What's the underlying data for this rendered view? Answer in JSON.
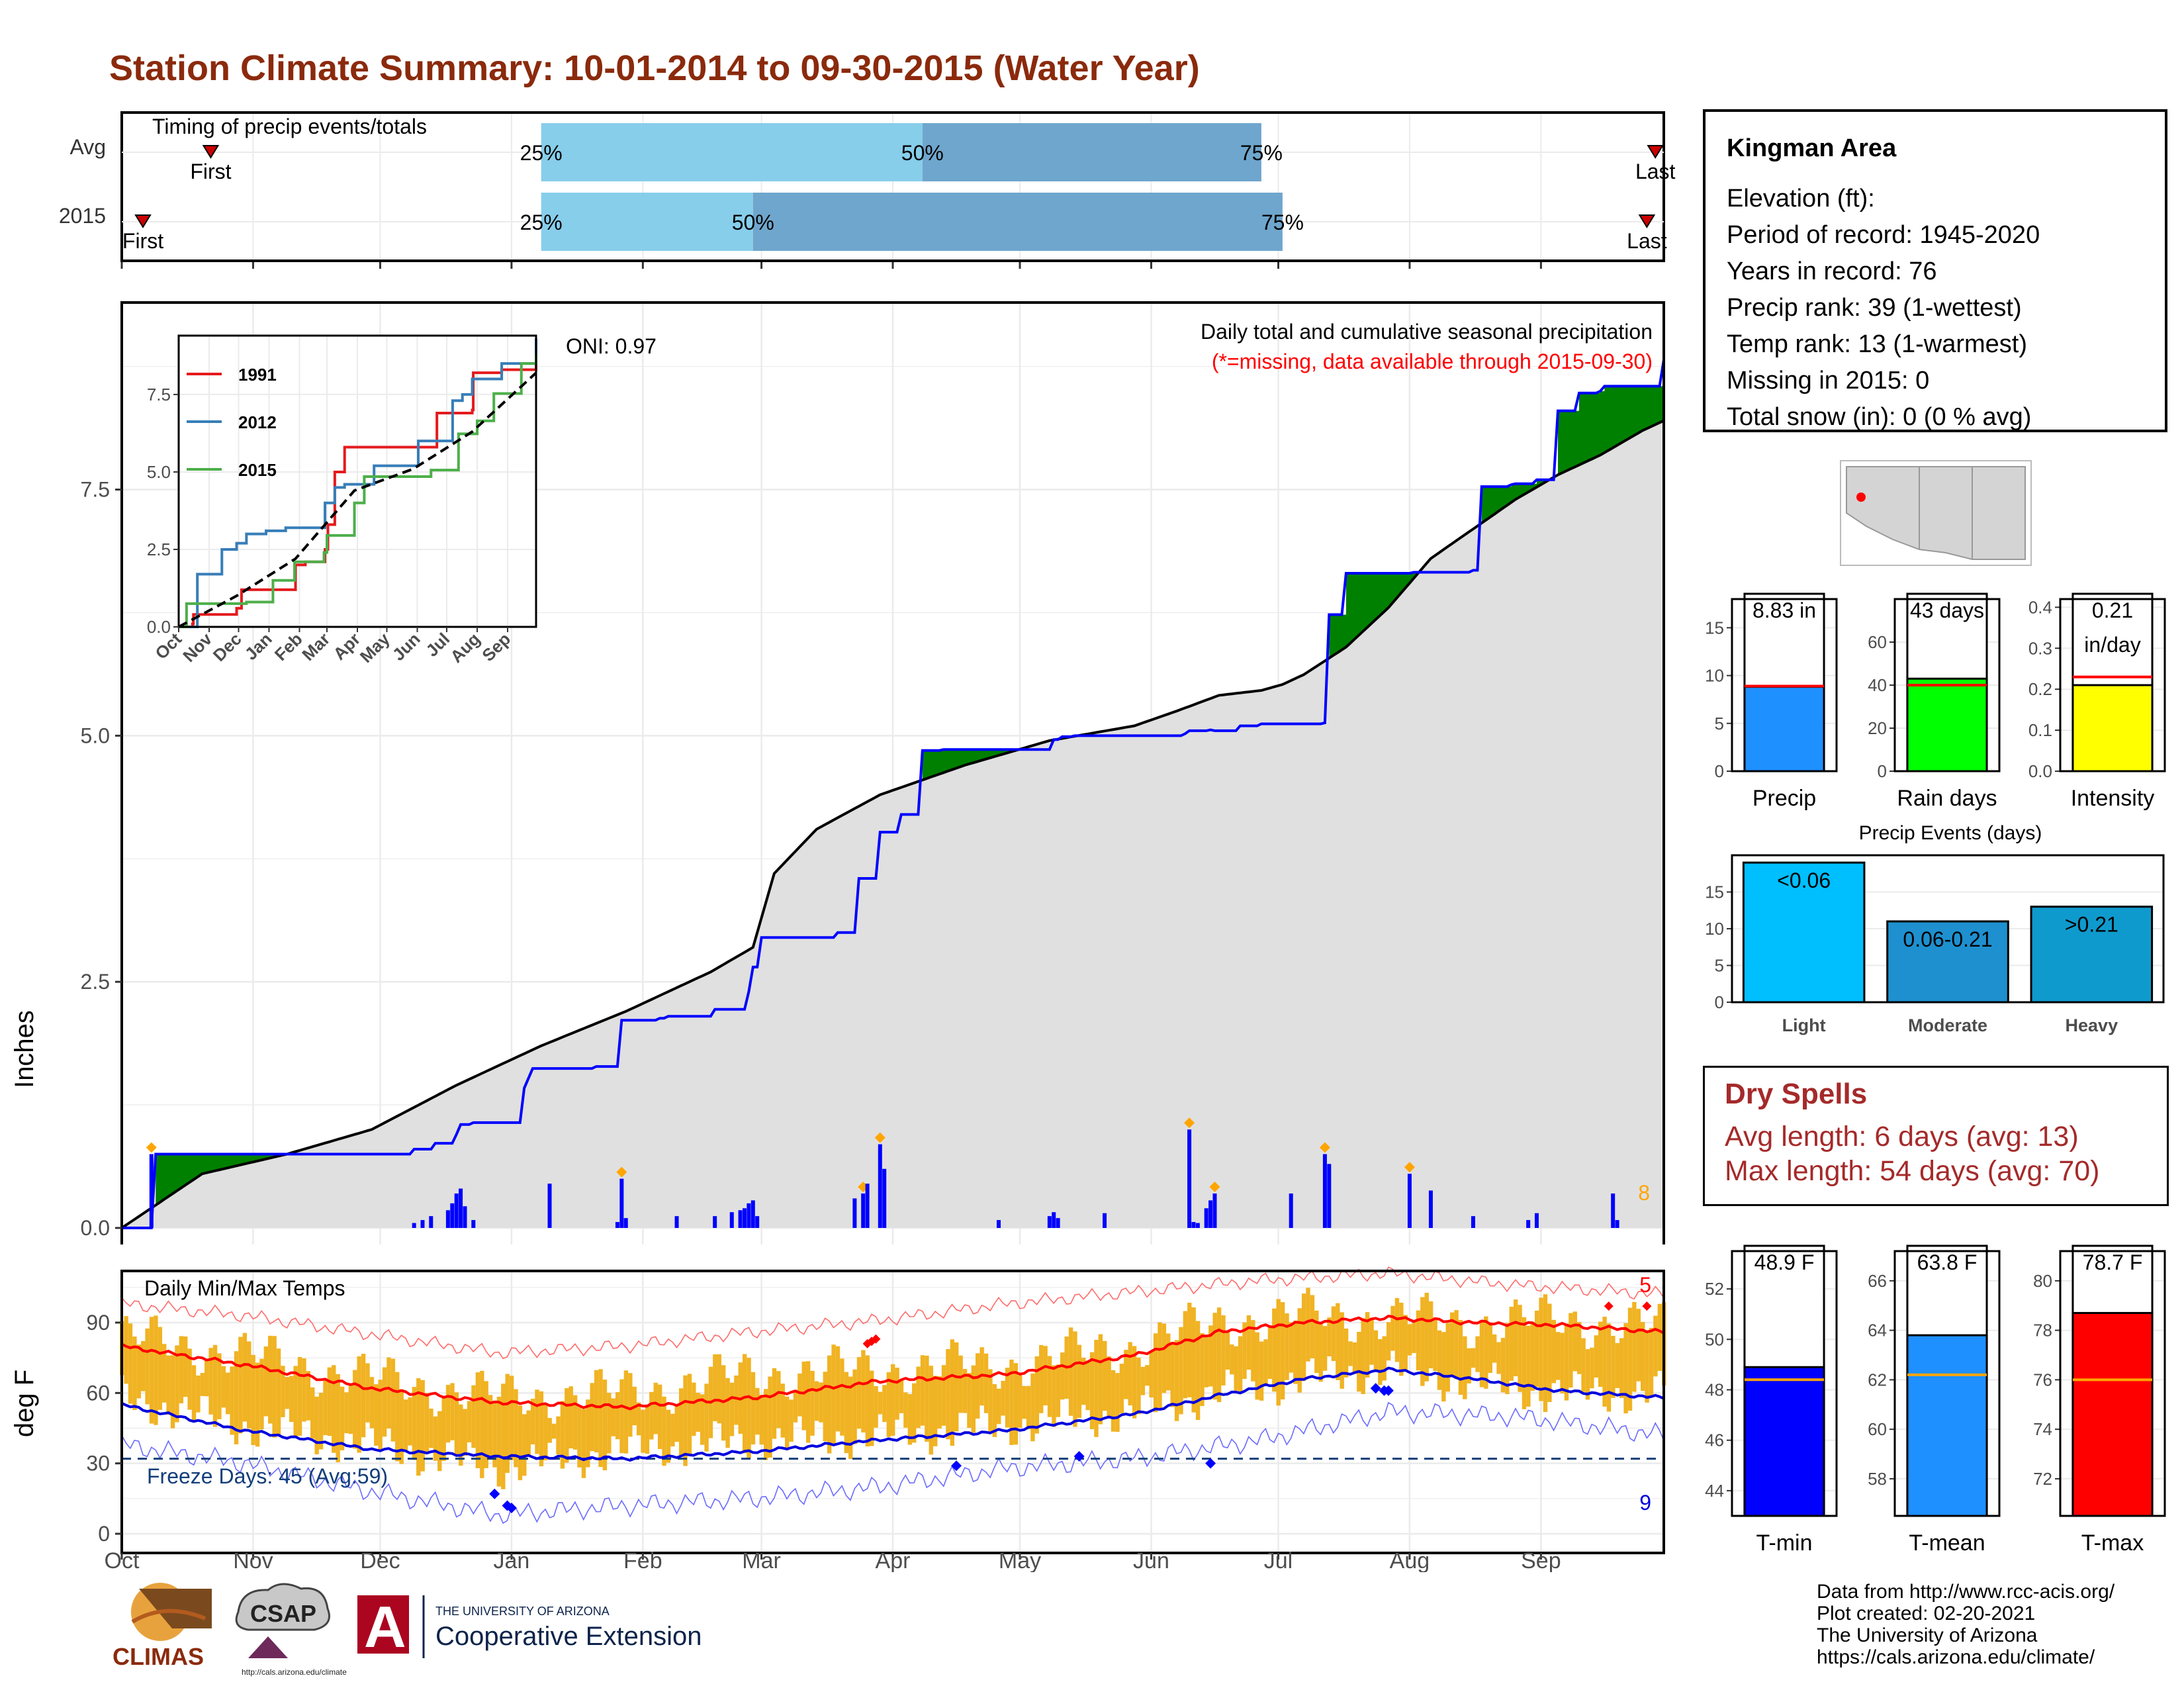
{
  "page": {
    "title": "Station Climate Summary: 10-01-2014 to 09-30-2015 (Water Year)"
  },
  "colors": {
    "title": "#8b2a0c",
    "light_blue": "#87ceeb",
    "mid_blue": "#6fa6cd",
    "above_avg": "#008000",
    "below_avg": "#8b5a00",
    "avg_fill": "#e0e0e0",
    "daily_bars": "#0000ff",
    "temp_bars": "#f0b323",
    "avg_max": "#ff0000",
    "avg_min": "#0000dd",
    "dry_spells": "#a52a2a"
  },
  "timing_panel": {
    "label": "Timing of precip events/totals",
    "rows": [
      {
        "label": "Avg",
        "first_marker": "First",
        "last_marker": "Last",
        "first_day": 22,
        "last_day": 363,
        "p25_label": "25%",
        "p50_label": "50%",
        "p75_label": "75%",
        "p25_day": 100,
        "p50_day": 190,
        "p75_day": 270
      },
      {
        "label": "2015",
        "first_marker": "First",
        "last_marker": "Last",
        "first_day": 6,
        "last_day": 361,
        "p25_label": "25%",
        "p50_label": "50%",
        "p75_label": "75%",
        "p25_day": 100,
        "p50_day": 150,
        "p75_day": 275
      }
    ]
  },
  "precip_panel": {
    "y_axis_label": "Inches",
    "ytick_labels": [
      "0.0",
      "2.5",
      "5.0",
      "7.5"
    ],
    "title": "Daily total and cumulative seasonal precipitation",
    "subtitle": "(*=missing, data available through 2015-09-30)",
    "oni": "ONI: 0.97",
    "corner_count": "8"
  },
  "inset": {
    "ytick_labels": [
      "0.0",
      "2.5",
      "5.0",
      "7.5"
    ],
    "xtick_labels": [
      "Oct",
      "Nov",
      "Dec",
      "Jan",
      "Feb",
      "Mar",
      "Apr",
      "May",
      "Jun",
      "Jul",
      "Aug",
      "Sep"
    ],
    "legend": [
      {
        "label": "1991",
        "color": "#e41a1c"
      },
      {
        "label": "2012",
        "color": "#377eb8"
      },
      {
        "label": "2015",
        "color": "#4daf4a"
      }
    ]
  },
  "temp_panel": {
    "y_axis_label": "deg F",
    "title": "Daily Min/Max Temps",
    "ytick_labels": [
      "0",
      "30",
      "60",
      "90"
    ],
    "freeze_days": "Freeze Days: 45 (Avg:59)",
    "record_high_count": "5",
    "record_low_count": "9"
  },
  "month_labels": [
    "Oct",
    "Nov",
    "Dec",
    "Jan",
    "Feb",
    "Mar",
    "Apr",
    "May",
    "Jun",
    "Jul",
    "Aug",
    "Sep"
  ],
  "info_box": {
    "name": "Kingman Area",
    "lines": [
      "Elevation (ft):",
      "Period of record: 1945-2020",
      "Years in record: 76",
      "Precip rank: 39 (1-wettest)",
      "Temp rank: 13 (1-warmest)",
      "Missing in 2015: 0",
      "Total snow (in): 0 (0 % avg)"
    ]
  },
  "dry_spells": {
    "title": "Dry Spells",
    "avg_length": "Avg length: 6 days (avg: 13)",
    "max_length": "Max length: 54 days (avg: 70)"
  },
  "events_title": "Precip Events (days)",
  "credits": [
    "Data from http://www.rcc-acis.org/",
    "Plot created: 02-20-2021",
    "The University of Arizona",
    "https://cals.arizona.edu/climate/"
  ],
  "logos": {
    "climas": "CLIMAS",
    "csap": "CSAP",
    "csap_url": "http://cals.arizona.edu/climate",
    "ua_letter": "A",
    "ua_small": "THE UNIVERSITY OF ARIZONA",
    "ua_big": "Cooperative Extension"
  },
  "chart_data": [
    {
      "type": "area",
      "title": "Daily total and cumulative seasonal precipitation",
      "ylabel": "Inches",
      "ylim": [
        0,
        9.4
      ],
      "x_unit": "day of water year (1 = Oct 1)",
      "grid": true,
      "series": [
        {
          "name": "cumulative_2015",
          "x": [
            1,
            8,
            9,
            45,
            70,
            75,
            80,
            81,
            84,
            93,
            96,
            97,
            98,
            113,
            119,
            128,
            130,
            132,
            135,
            141,
            149,
            150,
            152,
            153,
            156,
            166,
            170,
            175,
            180,
            185,
            190,
            195,
            196,
            210,
            220,
            221,
            223,
            226,
            252,
            253,
            258,
            259,
            265,
            270,
            285,
            286,
            290,
            305,
            306,
            320,
            322,
            329,
            330,
            335,
            340,
            345,
            350,
            351,
            365
          ],
          "y": [
            0.0,
            0.0,
            0.75,
            0.75,
            0.8,
            0.86,
            0.95,
            1.05,
            1.07,
            1.07,
            1.42,
            1.52,
            1.62,
            1.64,
            2.11,
            2.13,
            2.15,
            2.15,
            2.15,
            2.22,
            2.4,
            2.65,
            2.95,
            2.95,
            2.95,
            2.95,
            3.0,
            3.55,
            4.02,
            4.2,
            4.85,
            4.86,
            4.86,
            4.86,
            4.86,
            4.96,
            4.99,
            5.0,
            5.02,
            5.05,
            5.06,
            5.05,
            5.1,
            5.12,
            5.13,
            6.23,
            6.65,
            6.65,
            6.66,
            6.68,
            7.53,
            7.55,
            7.56,
            7.6,
            8.3,
            8.48,
            8.5,
            8.55,
            8.82
          ]
        },
        {
          "name": "cumulative_average",
          "x": [
            1,
            20,
            40,
            60,
            80,
            100,
            120,
            140,
            150,
            155,
            165,
            180,
            200,
            220,
            240,
            250,
            260,
            270,
            275,
            280,
            290,
            300,
            310,
            320,
            330,
            340,
            350,
            360,
            365
          ],
          "y": [
            0.0,
            0.55,
            0.75,
            1.0,
            1.45,
            1.85,
            2.2,
            2.6,
            2.85,
            3.6,
            4.05,
            4.4,
            4.7,
            4.95,
            5.1,
            5.25,
            5.41,
            5.46,
            5.52,
            5.62,
            5.9,
            6.3,
            6.8,
            7.1,
            7.4,
            7.65,
            7.85,
            8.1,
            8.2
          ]
        },
        {
          "name": "daily_precip",
          "x": [
            8,
            70,
            72,
            74,
            78,
            79,
            80,
            81,
            82,
            84,
            102,
            118,
            119,
            120,
            132,
            141,
            145,
            147,
            148,
            149,
            150,
            151,
            174,
            176,
            177,
            180,
            181,
            208,
            220,
            221,
            222,
            233,
            253,
            254,
            255,
            257,
            258,
            259,
            277,
            285,
            286,
            305,
            310,
            320,
            333,
            335,
            353,
            354
          ],
          "y": [
            0.75,
            0.05,
            0.08,
            0.12,
            0.18,
            0.25,
            0.35,
            0.4,
            0.22,
            0.08,
            0.45,
            0.06,
            0.5,
            0.1,
            0.12,
            0.12,
            0.16,
            0.18,
            0.2,
            0.25,
            0.28,
            0.12,
            0.3,
            0.35,
            0.45,
            0.85,
            0.6,
            0.08,
            0.12,
            0.16,
            0.1,
            0.15,
            1.0,
            0.06,
            0.05,
            0.2,
            0.28,
            0.35,
            0.35,
            0.75,
            0.65,
            0.55,
            0.38,
            0.12,
            0.08,
            0.15,
            0.35,
            0.08
          ]
        }
      ],
      "annotations": [
        "ONI: 0.97",
        "(*=missing, data available through 2015-09-30)",
        "8"
      ]
    },
    {
      "type": "line",
      "title": "",
      "ylim": [
        0,
        9.4
      ],
      "xtick_labels": [
        "Oct",
        "Nov",
        "Dec",
        "Jan",
        "Feb",
        "Mar",
        "Apr",
        "May",
        "Jun",
        "Jul",
        "Aug",
        "Sep"
      ],
      "series": [
        {
          "name": "1991",
          "x": [
            1,
            15,
            16,
            45,
            60,
            65,
            90,
            120,
            130,
            150,
            153,
            160,
            170,
            200,
            210,
            260,
            264,
            280,
            300,
            301,
            330,
            365
          ],
          "y": [
            0.0,
            0.1,
            0.4,
            0.4,
            0.6,
            1.2,
            1.2,
            2.0,
            2.1,
            2.5,
            3.3,
            5.0,
            5.8,
            5.8,
            5.8,
            5.8,
            6.9,
            6.9,
            7.0,
            8.2,
            8.3,
            8.6
          ]
        },
        {
          "name": "2012",
          "x": [
            1,
            20,
            30,
            45,
            60,
            70,
            90,
            110,
            150,
            160,
            170,
            200,
            230,
            245,
            270,
            280,
            290,
            300,
            330,
            365
          ],
          "y": [
            0.0,
            1.7,
            1.7,
            2.5,
            2.7,
            3.0,
            3.1,
            3.2,
            4.0,
            4.5,
            4.6,
            5.2,
            5.2,
            6.0,
            6.0,
            7.3,
            7.5,
            8.0,
            8.5,
            9.3
          ]
        },
        {
          "name": "2015",
          "x": [
            1,
            8,
            9,
            45,
            70,
            97,
            119,
            149,
            152,
            180,
            190,
            258,
            286,
            305,
            322,
            350,
            365
          ],
          "y": [
            0.0,
            0.0,
            0.75,
            0.75,
            0.8,
            1.5,
            2.1,
            2.4,
            2.95,
            4.0,
            4.85,
            5.06,
            6.23,
            6.65,
            7.53,
            8.5,
            8.82
          ]
        },
        {
          "name": "average",
          "x": [
            1,
            60,
            120,
            180,
            240,
            300,
            365
          ],
          "y": [
            0.0,
            1.0,
            2.2,
            4.4,
            5.1,
            6.3,
            8.2
          ]
        }
      ]
    },
    {
      "type": "line",
      "title": "Daily Min/Max Temps",
      "ylabel": "deg F",
      "ylim": [
        0,
        112
      ],
      "x_unit": "day of water year (1 = Oct 1)",
      "series": [
        {
          "name": "avg_max",
          "x": [
            1,
            30,
            60,
            90,
            120,
            150,
            180,
            210,
            240,
            260,
            280,
            300,
            320,
            340,
            365
          ],
          "y": [
            80,
            72,
            62,
            56,
            54,
            58,
            65,
            68,
            76,
            86,
            90,
            92,
            90,
            89,
            86
          ]
        },
        {
          "name": "avg_min",
          "x": [
            1,
            30,
            60,
            90,
            120,
            150,
            180,
            210,
            240,
            260,
            280,
            300,
            320,
            340,
            365
          ],
          "y": [
            55,
            44,
            36,
            33,
            32,
            35,
            40,
            44,
            51,
            59,
            66,
            70,
            66,
            61,
            58
          ]
        },
        {
          "name": "record_max",
          "x": [
            1,
            30,
            60,
            90,
            120,
            150,
            180,
            210,
            240,
            270,
            300,
            330,
            365
          ],
          "y": [
            98,
            93,
            85,
            77,
            80,
            86,
            91,
            98,
            103,
            108,
            111,
            106,
            102
          ]
        },
        {
          "name": "record_min",
          "x": [
            1,
            30,
            60,
            90,
            120,
            150,
            180,
            210,
            240,
            270,
            300,
            330,
            365
          ],
          "y": [
            38,
            30,
            18,
            8,
            12,
            15,
            20,
            28,
            32,
            40,
            52,
            50,
            42
          ]
        },
        {
          "name": "daily_max",
          "x": [
            1,
            30,
            60,
            90,
            120,
            150,
            180,
            210,
            240,
            260,
            280,
            300,
            320,
            340,
            365
          ],
          "y": [
            84,
            76,
            66,
            58,
            60,
            68,
            70,
            72,
            80,
            90,
            93,
            92,
            90,
            91,
            88
          ]
        },
        {
          "name": "daily_min",
          "x": [
            1,
            30,
            60,
            90,
            120,
            150,
            180,
            210,
            240,
            260,
            280,
            300,
            320,
            340,
            365
          ],
          "y": [
            58,
            46,
            38,
            28,
            36,
            40,
            42,
            46,
            52,
            60,
            66,
            70,
            64,
            60,
            60
          ]
        }
      ],
      "freeze_line": 32,
      "annotations": [
        "Freeze Days: 45 (Avg:59)",
        "5",
        "9"
      ]
    },
    {
      "type": "bar",
      "title": "",
      "categories": [
        "Precip"
      ],
      "values": [
        8.83
      ],
      "average": 8.9,
      "value_label": [
        "8.83 in"
      ],
      "ylim": [
        0,
        18
      ],
      "ytick_labels": [
        "0",
        "5",
        "10",
        "15"
      ],
      "color": "#1e90ff"
    },
    {
      "type": "bar",
      "title": "",
      "categories": [
        "Rain days"
      ],
      "values": [
        43
      ],
      "average": 40,
      "value_label": [
        "43 days"
      ],
      "ylim": [
        0,
        80
      ],
      "ytick_labels": [
        "0",
        "20",
        "40",
        "60"
      ],
      "color": "#00ff00"
    },
    {
      "type": "bar",
      "title": "",
      "categories": [
        "Intensity"
      ],
      "values": [
        0.21
      ],
      "average": 0.23,
      "value_label": [
        "0.21",
        "in/day"
      ],
      "ylim": [
        0,
        0.42
      ],
      "ytick_labels": [
        "0.0",
        "0.1",
        "0.2",
        "0.3",
        "0.4"
      ],
      "color": "#ffff00"
    },
    {
      "type": "bar",
      "title": "Precip Events (days)",
      "categories": [
        "Light",
        "Moderate",
        "Heavy"
      ],
      "values": [
        19,
        11,
        13
      ],
      "bar_labels": [
        "<0.06",
        "0.06-0.21",
        ">0.21"
      ],
      "ylim": [
        0,
        20
      ],
      "ytick_labels": [
        "0",
        "5",
        "10",
        "15"
      ]
    },
    {
      "type": "bar",
      "title": "",
      "categories": [
        "T-min"
      ],
      "values": [
        48.9
      ],
      "average": 48.4,
      "value_label": [
        "48.9 F"
      ],
      "ylim": [
        43,
        53.5
      ],
      "ytick_labels": [
        "44",
        "46",
        "48",
        "50",
        "52"
      ],
      "color": "#0000ff"
    },
    {
      "type": "bar",
      "title": "",
      "categories": [
        "T-mean"
      ],
      "values": [
        63.8
      ],
      "average": 62.2,
      "value_label": [
        "63.8 F"
      ],
      "ylim": [
        56.5,
        67.2
      ],
      "ytick_labels": [
        "58",
        "60",
        "62",
        "64",
        "66"
      ],
      "color": "#1e90ff"
    },
    {
      "type": "bar",
      "title": "",
      "categories": [
        "T-max"
      ],
      "values": [
        78.7
      ],
      "average": 76.0,
      "value_label": [
        "78.7 F"
      ],
      "ylim": [
        70.5,
        81.2
      ],
      "ytick_labels": [
        "72",
        "74",
        "76",
        "78",
        "80"
      ],
      "color": "#ff0000"
    }
  ]
}
